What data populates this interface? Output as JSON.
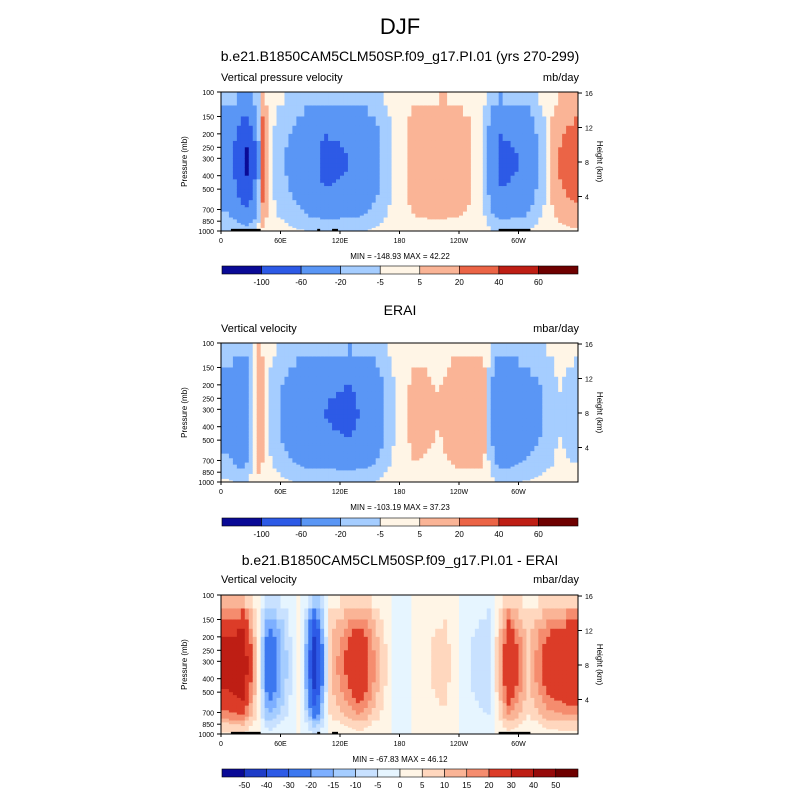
{
  "figure": {
    "season_title": "DJF"
  },
  "chart_data": [
    {
      "type": "heatmap",
      "title": "b.e21.B1850CAM5CLM50SP.f09_g17.PI.01 (yrs 270-299)",
      "left_label": "Vertical pressure velocity",
      "right_label": "mb/day",
      "ylabel": "Pressure (mb)",
      "ylabel_right": "Height (km)",
      "x_ticks": [
        "0",
        "60E",
        "120E",
        "180",
        "120W",
        "60W"
      ],
      "y_ticks": [
        "100",
        "150",
        "200",
        "250",
        "300",
        "400",
        "500",
        "700",
        "850",
        "1000"
      ],
      "height_ticks": [
        "4",
        "8",
        "12",
        "16"
      ],
      "min_max_text": "MIN = -148.93   MAX =  42.22",
      "levels": [
        "-100",
        "-60",
        "-20",
        "-5",
        "5",
        "20",
        "40",
        "60"
      ],
      "colorbar_colors": [
        "#0a0a96",
        "#1e3cc8",
        "#2d5ae6",
        "#3c78f0",
        "#5a96f5",
        "#7dafff",
        "#a5cdff",
        "#c8e1ff",
        "#e6f5ff",
        "#fff5e6",
        "#ffd7be",
        "#fab496",
        "#f58c6e",
        "#eb6446",
        "#dc3c28",
        "#be1e14",
        "#960a0a",
        "#6e0000"
      ],
      "profiles": [
        {
          "lon": 8,
          "v": -40
        },
        {
          "lon": 25,
          "v": -110
        },
        {
          "lon": 35,
          "v": -60
        },
        {
          "lon": 42,
          "v": 30
        },
        {
          "lon": 52,
          "v": -5
        },
        {
          "lon": 65,
          "v": -20
        },
        {
          "lon": 85,
          "v": -40
        },
        {
          "lon": 105,
          "v": -70
        },
        {
          "lon": 130,
          "v": -60
        },
        {
          "lon": 155,
          "v": -30
        },
        {
          "lon": 172,
          "v": -5
        },
        {
          "lon": 200,
          "v": 15
        },
        {
          "lon": 225,
          "v": 18
        },
        {
          "lon": 250,
          "v": 8
        },
        {
          "lon": 265,
          "v": -8
        },
        {
          "lon": 282,
          "v": -70
        },
        {
          "lon": 300,
          "v": -60
        },
        {
          "lon": 320,
          "v": -20
        },
        {
          "lon": 340,
          "v": 20
        },
        {
          "lon": 355,
          "v": 30
        }
      ],
      "topography": [
        {
          "lon_start": 10,
          "lon_end": 40
        },
        {
          "lon_start": 97,
          "lon_end": 100
        },
        {
          "lon_start": 112,
          "lon_end": 118
        },
        {
          "lon_start": 280,
          "lon_end": 312
        }
      ]
    },
    {
      "type": "heatmap",
      "title": "ERAI",
      "left_label": "Vertical velocity",
      "right_label": "mbar/day",
      "ylabel": "Pressure (mb)",
      "ylabel_right": "Height (km)",
      "x_ticks": [
        "0",
        "60E",
        "120E",
        "180",
        "120W",
        "60W"
      ],
      "y_ticks": [
        "100",
        "150",
        "200",
        "250",
        "300",
        "400",
        "500",
        "700",
        "850",
        "1000"
      ],
      "height_ticks": [
        "4",
        "8",
        "12",
        "16"
      ],
      "min_max_text": "MIN = -103.19   MAX =  37.23",
      "levels": [
        "-100",
        "-60",
        "-20",
        "-5",
        "5",
        "20",
        "40",
        "60"
      ],
      "colorbar_colors": [
        "#0a0a96",
        "#1e3cc8",
        "#2d5ae6",
        "#3c78f0",
        "#5a96f5",
        "#7dafff",
        "#a5cdff",
        "#c8e1ff",
        "#e6f5ff",
        "#fff5e6",
        "#ffd7be",
        "#fab496",
        "#f58c6e",
        "#eb6446",
        "#dc3c28",
        "#be1e14",
        "#960a0a",
        "#6e0000"
      ],
      "profiles": [
        {
          "lon": 8,
          "v": -30
        },
        {
          "lon": 22,
          "v": -60
        },
        {
          "lon": 38,
          "v": 20
        },
        {
          "lon": 48,
          "v": -5
        },
        {
          "lon": 62,
          "v": -25
        },
        {
          "lon": 80,
          "v": -45
        },
        {
          "lon": 105,
          "v": -60
        },
        {
          "lon": 130,
          "v": -70
        },
        {
          "lon": 155,
          "v": -40
        },
        {
          "lon": 172,
          "v": -8
        },
        {
          "lon": 195,
          "v": 10
        },
        {
          "lon": 220,
          "v": 5
        },
        {
          "lon": 245,
          "v": 15
        },
        {
          "lon": 265,
          "v": 12
        },
        {
          "lon": 282,
          "v": -60
        },
        {
          "lon": 300,
          "v": -40
        },
        {
          "lon": 320,
          "v": -25
        },
        {
          "lon": 340,
          "v": -5
        },
        {
          "lon": 355,
          "v": -10
        }
      ],
      "topography": []
    },
    {
      "type": "heatmap",
      "title": "b.e21.B1850CAM5CLM50SP.f09_g17.PI.01 - ERAI",
      "left_label": "Vertical velocity",
      "right_label": "mbar/day",
      "ylabel": "Pressure (mb)",
      "ylabel_right": "Height (km)",
      "x_ticks": [
        "0",
        "60E",
        "120E",
        "180",
        "120W",
        "60W"
      ],
      "y_ticks": [
        "100",
        "150",
        "200",
        "250",
        "300",
        "400",
        "500",
        "700",
        "850",
        "1000"
      ],
      "height_ticks": [
        "4",
        "8",
        "12",
        "16"
      ],
      "min_max_text": "MIN = -67.83   MAX =  46.12",
      "levels": [
        "-50",
        "-40",
        "-30",
        "-20",
        "-15",
        "-10",
        "-5",
        "0",
        "5",
        "10",
        "15",
        "20",
        "30",
        "40",
        "50"
      ],
      "colorbar_colors": [
        "#0a0a96",
        "#1e3cc8",
        "#2d5ae6",
        "#3c78f0",
        "#5a96f5",
        "#7dafff",
        "#a5cdff",
        "#c8e1ff",
        "#e6f5ff",
        "#fff5e6",
        "#ffd7be",
        "#fab496",
        "#f58c6e",
        "#eb6446",
        "#dc3c28",
        "#be1e14",
        "#960a0a",
        "#6e0000"
      ],
      "profiles": [
        {
          "lon": 8,
          "v": 35
        },
        {
          "lon": 22,
          "v": 40
        },
        {
          "lon": 35,
          "v": 10
        },
        {
          "lon": 48,
          "v": -30
        },
        {
          "lon": 62,
          "v": -15
        },
        {
          "lon": 80,
          "v": 5
        },
        {
          "lon": 95,
          "v": -50
        },
        {
          "lon": 110,
          "v": 10
        },
        {
          "lon": 140,
          "v": 30
        },
        {
          "lon": 160,
          "v": 10
        },
        {
          "lon": 180,
          "v": -5
        },
        {
          "lon": 200,
          "v": 3
        },
        {
          "lon": 225,
          "v": 8
        },
        {
          "lon": 250,
          "v": -5
        },
        {
          "lon": 270,
          "v": -10
        },
        {
          "lon": 290,
          "v": 30
        },
        {
          "lon": 310,
          "v": 10
        },
        {
          "lon": 330,
          "v": 25
        },
        {
          "lon": 350,
          "v": 30
        }
      ],
      "topography": [
        {
          "lon_start": 10,
          "lon_end": 40
        },
        {
          "lon_start": 97,
          "lon_end": 100
        },
        {
          "lon_start": 112,
          "lon_end": 118
        },
        {
          "lon_start": 280,
          "lon_end": 312
        }
      ]
    }
  ]
}
